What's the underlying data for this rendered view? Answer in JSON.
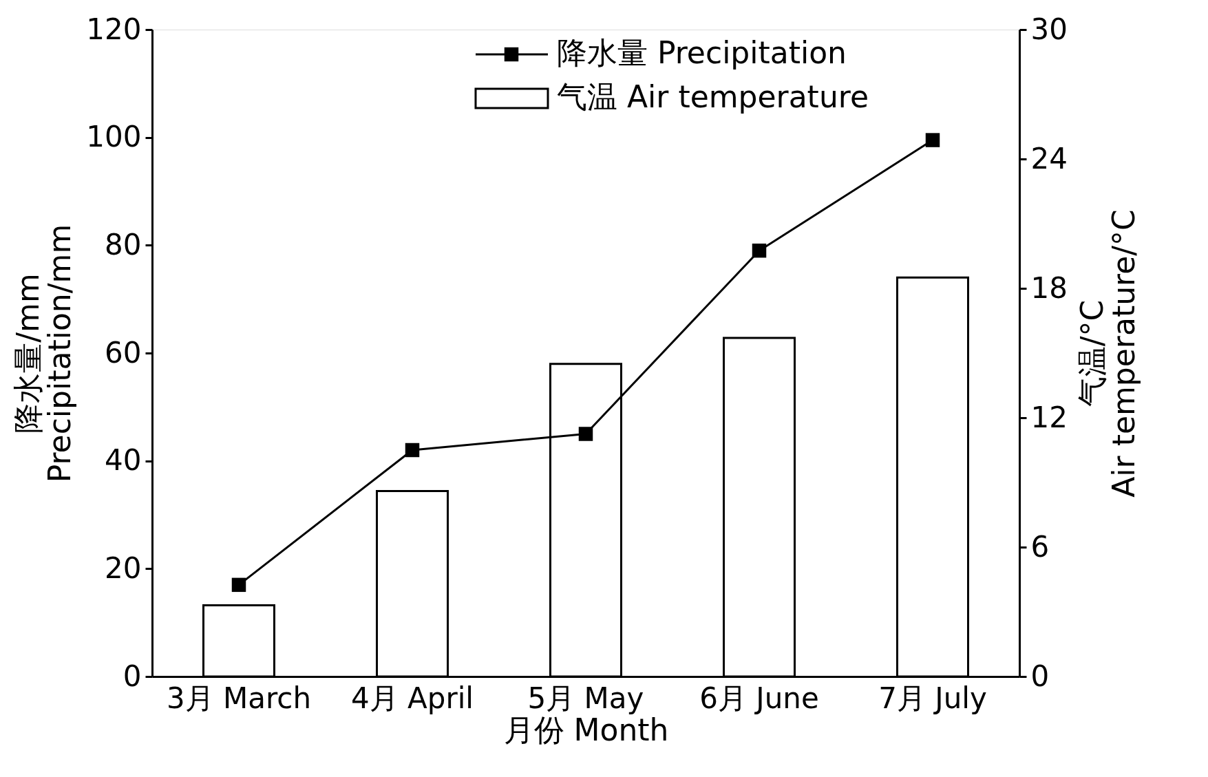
{
  "chart_data": {
    "type": "bar",
    "xlabel": "月份 Month",
    "ylabel": "降水量/mm\nPrecipitation/mm",
    "y2label": "气温/°C\nAir temperature/°C",
    "categories": [
      "3月 March",
      "4月 April",
      "5月 May",
      "6月 June",
      "7月 July"
    ],
    "series": [
      {
        "name": "降水量 Precipitation",
        "type": "line",
        "color": "#000000",
        "values": [
          17,
          42,
          45,
          79,
          99.5
        ]
      },
      {
        "name": "气温 Air temperature",
        "axis": "y2",
        "color": "#ffffff",
        "values": [
          3.3,
          8.6,
          14.5,
          15.7,
          18.5
        ]
      }
    ],
    "ylim": [
      0,
      120
    ],
    "yticks": [
      0,
      20,
      40,
      60,
      80,
      100,
      120
    ],
    "y2lim": [
      0,
      30
    ],
    "y2ticks": [
      0,
      6,
      12,
      18,
      24,
      30
    ],
    "marker": "square",
    "line_style": "solid",
    "grid": false,
    "legend": "top right"
  }
}
